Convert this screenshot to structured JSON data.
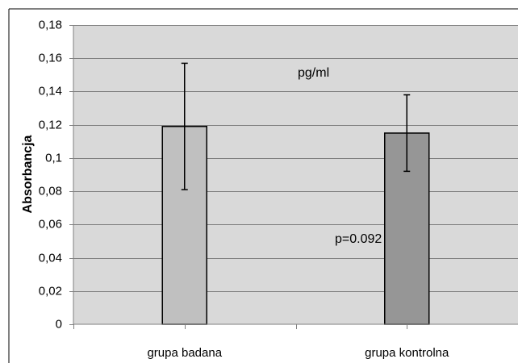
{
  "chart_data": {
    "type": "bar",
    "title": "",
    "xlabel": "",
    "ylabel": "Absorbancja",
    "categories": [
      "grupa badana",
      "grupa kontrolna"
    ],
    "values": [
      0.119,
      0.115
    ],
    "error_low": [
      0.081,
      0.092
    ],
    "error_high": [
      0.157,
      0.138
    ],
    "bar_colors": [
      "#c0c0c0",
      "#969696"
    ],
    "ylim": [
      0,
      0.18
    ],
    "y_tick_values": [
      0,
      0.02,
      0.04,
      0.06,
      0.08,
      0.1,
      0.12,
      0.14,
      0.16,
      0.18
    ],
    "y_tick_labels": [
      "0",
      "0,02",
      "0,04",
      "0,06",
      "0,08",
      "0,1",
      "0,12",
      "0,14",
      "0,16",
      "0,18"
    ],
    "grid": true,
    "legend": "none",
    "annotations": [
      "pg/ml",
      "p=0.092"
    ],
    "plot_background": "#d9d9d9"
  }
}
